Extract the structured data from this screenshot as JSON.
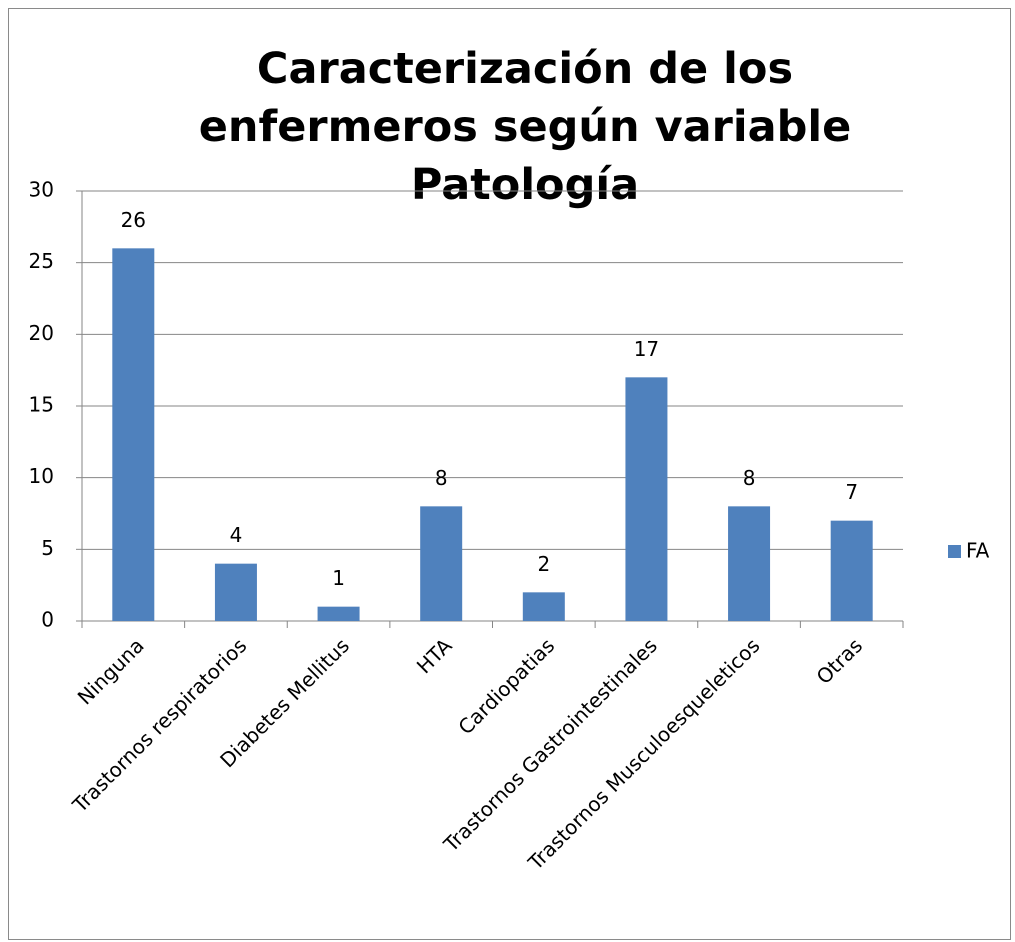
{
  "chart_data": {
    "type": "bar",
    "title": "Caracterización de los enfermeros según variable Patología",
    "categories": [
      "Ninguna",
      "Trastornos respiratorios",
      "Diabetes Mellitus",
      "HTA",
      "Cardiopatias",
      "Trastornos Gastrointestinales",
      "Trastornos Musculoesqueleticos",
      "Otras"
    ],
    "series": [
      {
        "name": "FA",
        "color": "#4f81bd",
        "values": [
          26,
          4,
          1,
          8,
          2,
          17,
          8,
          7
        ]
      }
    ],
    "ylim": [
      0,
      30
    ],
    "yticks": [
      0,
      5,
      10,
      15,
      20,
      25,
      30
    ],
    "grid": true,
    "legend": "right"
  }
}
